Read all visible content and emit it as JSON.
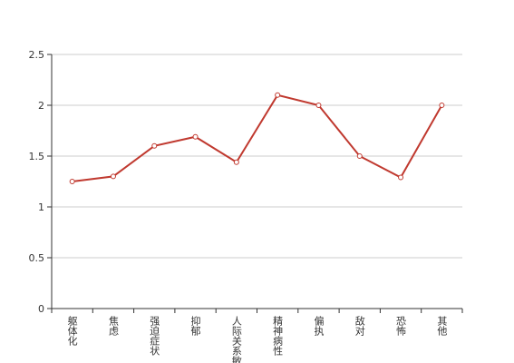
{
  "chart_data": {
    "type": "line",
    "categories": [
      "躯体化",
      "焦虑",
      "强迫症状",
      "抑郁",
      "人际关系敏感",
      "精神病性",
      "偏执",
      "敌对",
      "恐怖",
      "其他"
    ],
    "series": [
      {
        "name": null,
        "color": "#c0392f",
        "values": [
          1.25,
          1.3,
          1.6,
          1.69,
          1.44,
          2.1,
          2.0,
          1.5,
          1.29,
          2.0
        ]
      }
    ],
    "ylim": [
      0,
      2.5
    ],
    "yticks": [
      0,
      0.5,
      1,
      1.5,
      2,
      2.5
    ],
    "grid": true
  }
}
